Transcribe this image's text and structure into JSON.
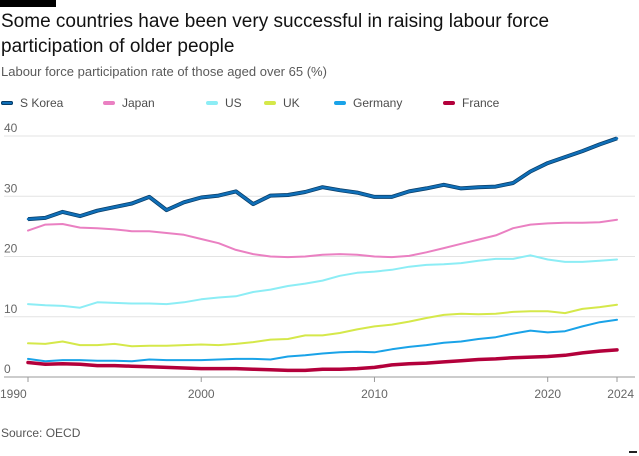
{
  "title": "Some countries have been very successful in raising labour force participation of older people",
  "subtitle": "Labour force participation rate of those aged over 65 (%)",
  "source": "Source: OECD",
  "chart_data": {
    "type": "line",
    "title": "Some countries have been very successful in raising labour force participation of older people",
    "subtitle": "Labour force participation rate of those aged over 65 (%)",
    "xlabel": "",
    "ylabel": "",
    "xlim": [
      1990,
      2024
    ],
    "ylim": [
      0,
      40
    ],
    "x_ticks": [
      "1990",
      "2000",
      "2010",
      "2020",
      "2024"
    ],
    "y_ticks": [
      "0",
      "10",
      "20",
      "30",
      "40"
    ],
    "grid": true,
    "legend_position": "top",
    "x": [
      1990,
      1991,
      1992,
      1993,
      1994,
      1995,
      1996,
      1997,
      1998,
      1999,
      2000,
      2001,
      2002,
      2003,
      2004,
      2005,
      2006,
      2007,
      2008,
      2009,
      2010,
      2011,
      2012,
      2013,
      2014,
      2015,
      2016,
      2017,
      2018,
      2019,
      2020,
      2021,
      2022,
      2023,
      2024
    ],
    "series": [
      {
        "name": "S Korea",
        "color": "#0f6fb8",
        "values": [
          26.2,
          26.4,
          27.4,
          26.7,
          27.6,
          28.2,
          28.8,
          29.9,
          27.7,
          29.0,
          29.8,
          30.1,
          30.8,
          28.7,
          30.1,
          30.2,
          30.7,
          31.5,
          31.0,
          30.6,
          29.9,
          29.9,
          30.8,
          31.3,
          31.9,
          31.3,
          31.5,
          31.6,
          32.2,
          34.1,
          35.5,
          36.5,
          37.5,
          38.6,
          39.6
        ]
      },
      {
        "name": "Japan",
        "color": "#ea80c2",
        "values": [
          24.3,
          25.3,
          25.4,
          24.8,
          24.7,
          24.5,
          24.2,
          24.2,
          23.9,
          23.6,
          22.9,
          22.2,
          21.1,
          20.4,
          20.0,
          19.9,
          20.0,
          20.3,
          20.4,
          20.3,
          20.0,
          19.9,
          20.1,
          20.7,
          21.4,
          22.1,
          22.8,
          23.5,
          24.7,
          25.3,
          25.5,
          25.6,
          25.6,
          25.7,
          26.1
        ]
      },
      {
        "name": "US",
        "color": "#8cedf5",
        "values": [
          12.1,
          11.9,
          11.8,
          11.5,
          12.4,
          12.3,
          12.2,
          12.2,
          12.1,
          12.4,
          12.9,
          13.2,
          13.4,
          14.1,
          14.5,
          15.1,
          15.5,
          16.0,
          16.8,
          17.3,
          17.5,
          17.8,
          18.3,
          18.6,
          18.7,
          18.9,
          19.3,
          19.6,
          19.6,
          20.2,
          19.5,
          19.1,
          19.1,
          19.3,
          19.5
        ]
      },
      {
        "name": "UK",
        "color": "#d5e84a",
        "values": [
          5.6,
          5.5,
          5.9,
          5.3,
          5.3,
          5.5,
          5.1,
          5.2,
          5.2,
          5.3,
          5.4,
          5.3,
          5.5,
          5.8,
          6.2,
          6.3,
          6.9,
          6.9,
          7.3,
          7.9,
          8.4,
          8.7,
          9.2,
          9.8,
          10.3,
          10.5,
          10.4,
          10.5,
          10.8,
          10.9,
          10.9,
          10.6,
          11.3,
          11.6,
          12.0
        ]
      },
      {
        "name": "Germany",
        "color": "#1aa3e8",
        "values": [
          3.0,
          2.6,
          2.8,
          2.8,
          2.7,
          2.7,
          2.6,
          2.9,
          2.8,
          2.8,
          2.8,
          2.9,
          3.0,
          3.0,
          2.9,
          3.4,
          3.6,
          3.9,
          4.1,
          4.2,
          4.1,
          4.6,
          5.0,
          5.3,
          5.7,
          5.9,
          6.3,
          6.6,
          7.2,
          7.7,
          7.4,
          7.6,
          8.4,
          9.1,
          9.5
        ]
      },
      {
        "name": "France",
        "color": "#b3003b",
        "values": [
          2.4,
          2.1,
          2.2,
          2.1,
          1.9,
          1.9,
          1.8,
          1.7,
          1.6,
          1.5,
          1.4,
          1.4,
          1.4,
          1.3,
          1.2,
          1.1,
          1.1,
          1.3,
          1.3,
          1.4,
          1.6,
          2.0,
          2.2,
          2.3,
          2.5,
          2.7,
          2.9,
          3.0,
          3.2,
          3.3,
          3.4,
          3.6,
          4.0,
          4.3,
          4.5
        ]
      }
    ]
  }
}
